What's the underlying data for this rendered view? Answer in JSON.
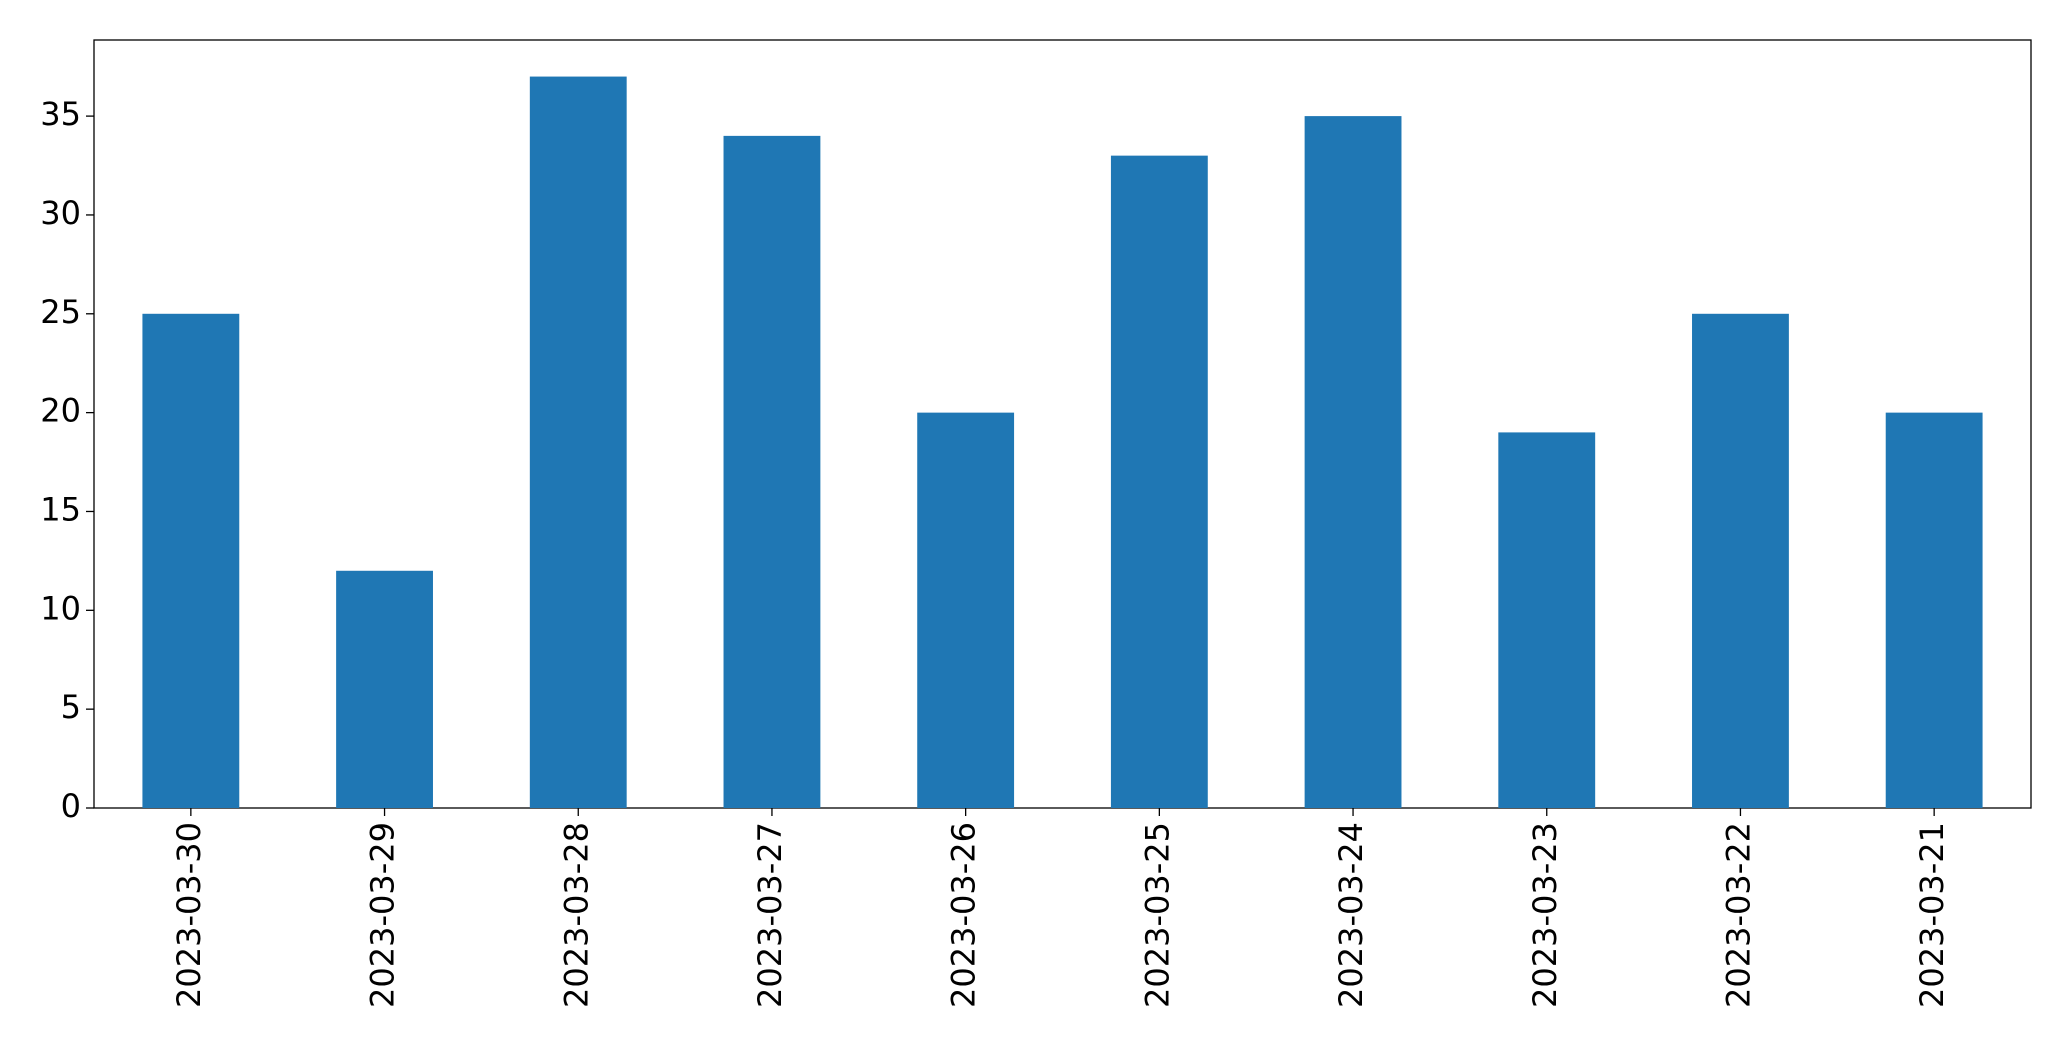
{
  "chart_data": {
    "type": "bar",
    "categories": [
      "2023-03-30",
      "2023-03-29",
      "2023-03-28",
      "2023-03-27",
      "2023-03-26",
      "2023-03-25",
      "2023-03-24",
      "2023-03-23",
      "2023-03-22",
      "2023-03-21"
    ],
    "values": [
      25,
      12,
      37,
      34,
      20,
      33,
      35,
      19,
      25,
      20
    ],
    "color": "#1f77b4",
    "ylim": [
      0,
      38.85
    ],
    "yticks": [
      0,
      5,
      10,
      15,
      20,
      25,
      30,
      35
    ],
    "grid": false
  }
}
